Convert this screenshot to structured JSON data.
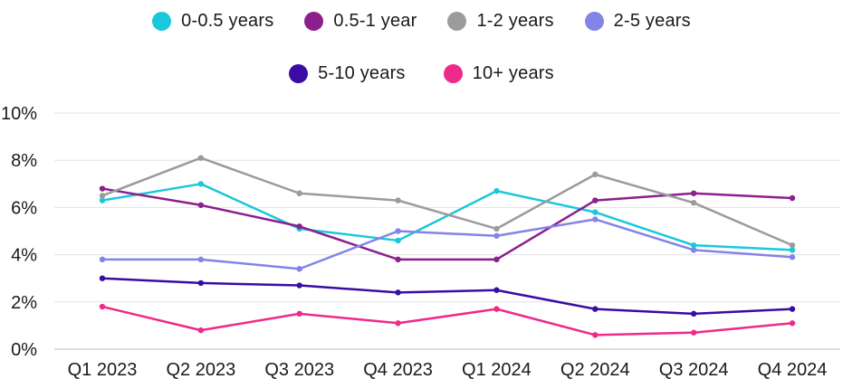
{
  "chart_data": {
    "type": "line",
    "title": "",
    "xlabel": "",
    "ylabel": "",
    "categories": [
      "Q1 2023",
      "Q2 2023",
      "Q3 2023",
      "Q4 2023",
      "Q1 2024",
      "Q2 2024",
      "Q3 2024",
      "Q4 2024"
    ],
    "ylim": [
      0,
      10
    ],
    "yticks": [
      0,
      2,
      4,
      6,
      8,
      10
    ],
    "ytick_labels": [
      "0%",
      "2%",
      "4%",
      "6%",
      "8%",
      "10%"
    ],
    "y_unit": "%",
    "grid": true,
    "legend_position": "top",
    "series": [
      {
        "name": "0-0.5 years",
        "color": "#1ac8db",
        "values": [
          6.3,
          7.0,
          5.1,
          4.6,
          6.7,
          5.8,
          4.4,
          4.2
        ]
      },
      {
        "name": "0.5-1 year",
        "color": "#8b1f8e",
        "values": [
          6.8,
          6.1,
          5.2,
          3.8,
          3.8,
          6.3,
          6.6,
          6.4
        ]
      },
      {
        "name": "1-2 years",
        "color": "#9b9b9b",
        "values": [
          6.5,
          8.1,
          6.6,
          6.3,
          5.1,
          7.4,
          6.2,
          4.4
        ]
      },
      {
        "name": "2-5 years",
        "color": "#8383e8",
        "values": [
          3.8,
          3.8,
          3.4,
          5.0,
          4.8,
          5.5,
          4.2,
          3.9
        ]
      },
      {
        "name": "5-10 years",
        "color": "#3a0ca3",
        "values": [
          3.0,
          2.8,
          2.7,
          2.4,
          2.5,
          1.7,
          1.5,
          1.7
        ]
      },
      {
        "name": "10+ years",
        "color": "#ee2a8a",
        "values": [
          1.8,
          0.8,
          1.5,
          1.1,
          1.7,
          0.6,
          0.7,
          1.1
        ]
      }
    ]
  }
}
